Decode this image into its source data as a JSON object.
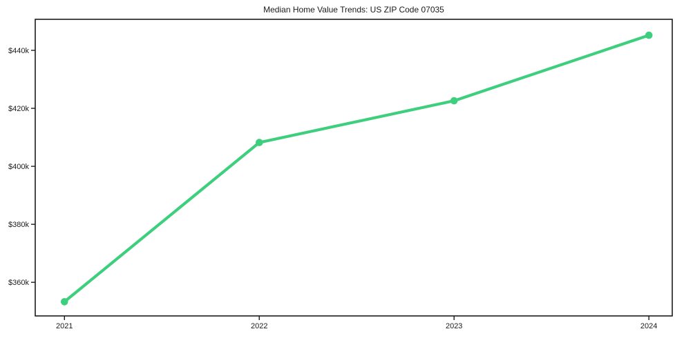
{
  "title": "Median Home Value Trends: US ZIP Code 07035",
  "chart_data": {
    "type": "line",
    "title": "Median Home Value Trends: US ZIP Code 07035",
    "xlabel": "",
    "ylabel": "",
    "x": [
      2021,
      2022,
      2023,
      2024
    ],
    "x_tick_labels": [
      "2021",
      "2022",
      "2023",
      "2024"
    ],
    "series": [
      {
        "name": "Median Home Value",
        "values": [
          353300,
          408200,
          422600,
          445200
        ]
      }
    ],
    "y_ticks": [
      {
        "value": 360000,
        "label": "$360k"
      },
      {
        "value": 380000,
        "label": "$380k"
      },
      {
        "value": 400000,
        "label": "$400k"
      },
      {
        "value": 420000,
        "label": "$420k"
      },
      {
        "value": 440000,
        "label": "$440k"
      }
    ],
    "xlim": [
      2020.85,
      2024.12
    ],
    "ylim": [
      348400,
      450700
    ],
    "grid": false,
    "legend": false,
    "marker": "circle",
    "colors": {
      "line": "#3ecf7e",
      "marker": "#3ecf7e",
      "axes": "#1a1a1a",
      "text": "#1a1a1a",
      "background": "#ffffff"
    }
  }
}
